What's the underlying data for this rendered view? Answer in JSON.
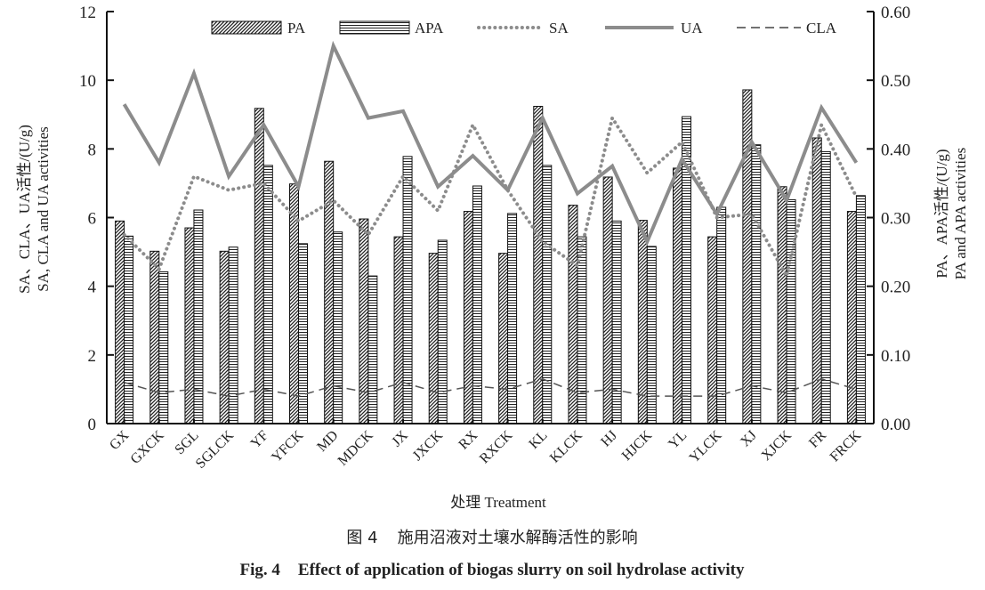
{
  "chart_data": {
    "type": "bar",
    "categories": [
      "GX",
      "GXCK",
      "SGL",
      "SGLCK",
      "YF",
      "YFCK",
      "MD",
      "MDCK",
      "JX",
      "JXCK",
      "RX",
      "RXCK",
      "KL",
      "KLCK",
      "HJ",
      "HJCK",
      "YL",
      "YLCK",
      "XJ",
      "XJCK",
      "FR",
      "FRCK"
    ],
    "bar_series": [
      {
        "name": "PA",
        "axis": "right",
        "pattern": "diagonal",
        "values": [
          0.295,
          0.251,
          0.285,
          0.251,
          0.459,
          0.349,
          0.382,
          0.298,
          0.272,
          0.248,
          0.309,
          0.248,
          0.462,
          0.318,
          0.359,
          0.296,
          0.372,
          0.272,
          0.486,
          0.345,
          0.416,
          0.309
        ]
      },
      {
        "name": "APA",
        "axis": "right",
        "pattern": "horizontal",
        "values": [
          0.273,
          0.221,
          0.311,
          0.257,
          0.376,
          0.262,
          0.279,
          0.215,
          0.389,
          0.267,
          0.346,
          0.306,
          0.376,
          0.272,
          0.295,
          0.258,
          0.447,
          0.315,
          0.406,
          0.326,
          0.396,
          0.332
        ]
      }
    ],
    "line_series": [
      {
        "name": "SA",
        "axis": "left",
        "style": "dotted",
        "values": [
          5.5,
          4.5,
          7.2,
          6.8,
          7.0,
          5.9,
          6.5,
          5.5,
          7.2,
          6.2,
          8.7,
          6.8,
          5.3,
          4.6,
          8.9,
          7.3,
          8.2,
          6.0,
          6.1,
          4.3,
          8.7,
          6.6
        ]
      },
      {
        "name": "UA",
        "axis": "left",
        "style": "solid",
        "values": [
          9.3,
          7.6,
          10.2,
          7.2,
          8.7,
          6.9,
          11.0,
          8.9,
          9.1,
          6.9,
          7.8,
          6.8,
          8.9,
          6.7,
          7.5,
          5.3,
          7.7,
          6.1,
          8.2,
          6.5,
          9.2,
          7.6
        ]
      },
      {
        "name": "CLA",
        "axis": "left",
        "style": "dashed",
        "values": [
          1.2,
          0.9,
          1.0,
          0.8,
          1.0,
          0.8,
          1.1,
          0.9,
          1.2,
          0.9,
          1.1,
          1.0,
          1.3,
          0.9,
          1.0,
          0.8,
          0.8,
          0.8,
          1.1,
          0.9,
          1.3,
          1.0
        ]
      }
    ],
    "legend_order": [
      "PA",
      "APA",
      "SA",
      "UA",
      "CLA"
    ],
    "left_axis": {
      "ylim": [
        0,
        12
      ],
      "ticks": [
        "0",
        "2",
        "4",
        "6",
        "8",
        "10",
        "12"
      ],
      "label_cn": "SA、CLA、UA活性/(U/g)",
      "label_en": "SA, CLA and UA activities"
    },
    "right_axis": {
      "ylim": [
        0,
        0.6
      ],
      "ticks": [
        "0.00",
        "0.10",
        "0.20",
        "0.30",
        "0.40",
        "0.50",
        "0.60"
      ],
      "label_cn": "PA、APA活性/(U/g)",
      "label_en": "PA and APA  activities"
    },
    "xlabel": "处理 Treatment",
    "grid": false,
    "legend_position": "top"
  },
  "caption": {
    "cn_num": "图 4",
    "cn_text": "施用沼液对土壤水解酶活性的影响",
    "en_num": "Fig. 4",
    "en_text": "Effect of application of biogas slurry on soil hydrolase activity"
  },
  "colors": {
    "line": "#8c8c8c",
    "bar_stroke": "#111111",
    "axis": "#111111"
  }
}
